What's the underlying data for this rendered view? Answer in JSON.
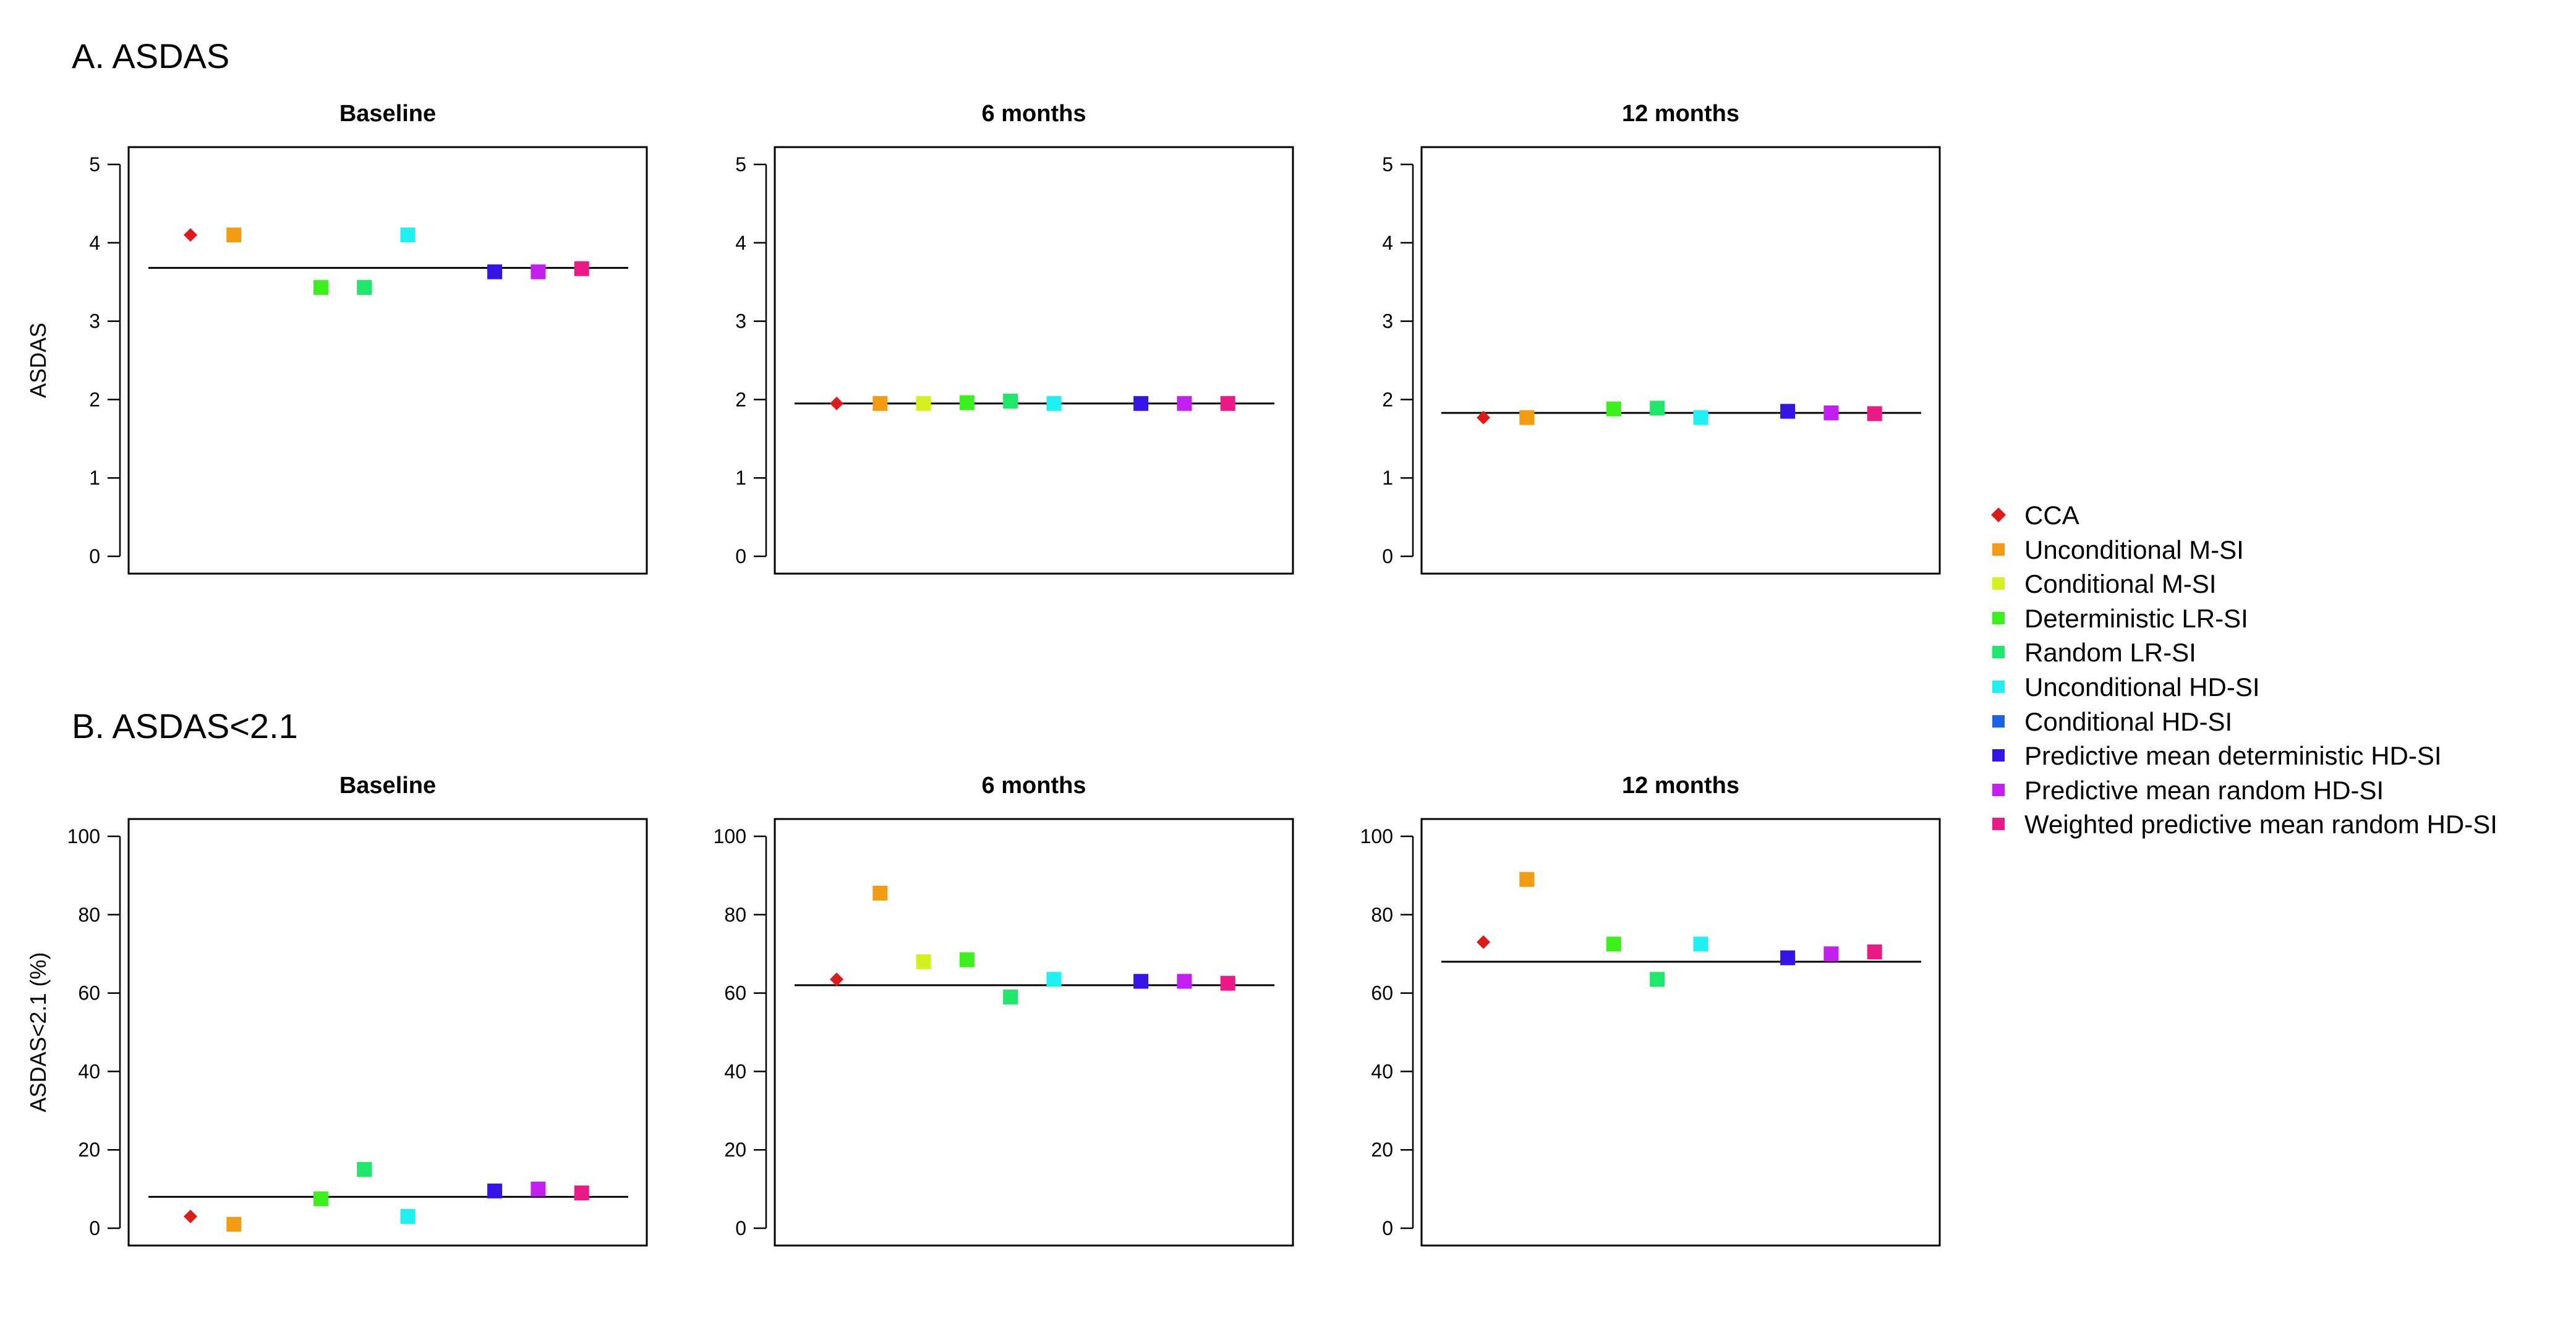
{
  "sections": [
    {
      "title": "A. ASDAS"
    },
    {
      "title": "B. ASDAS<2.1"
    }
  ],
  "legend": [
    {
      "name": "CCA",
      "color": "#dd1b1b",
      "shape": "diamond"
    },
    {
      "name": "Unconditional M-SI",
      "color": "#f39c12",
      "shape": "square"
    },
    {
      "name": "Conditional M-SI",
      "color": "#d4f01f",
      "shape": "square"
    },
    {
      "name": "Deterministic LR-SI",
      "color": "#3cf01e",
      "shape": "square"
    },
    {
      "name": "Random LR-SI",
      "color": "#1de86c",
      "shape": "square"
    },
    {
      "name": "Unconditional HD-SI",
      "color": "#1ff0f0",
      "shape": "square"
    },
    {
      "name": "Conditional HD-SI",
      "color": "#1c62e8",
      "shape": "square"
    },
    {
      "name": "Predictive mean deterministic HD-SI",
      "color": "#3514e6",
      "shape": "square"
    },
    {
      "name": "Predictive mean random HD-SI",
      "color": "#c21ff0",
      "shape": "square"
    },
    {
      "name": "Weighted predictive mean random HD-SI",
      "color": "#ec1a86",
      "shape": "square"
    }
  ],
  "chart_data": [
    {
      "type": "scatter",
      "title": "Baseline",
      "ylabel": "ASDAS",
      "ylim": [
        0,
        5
      ],
      "yticks": [
        "0",
        "1",
        "2",
        "3",
        "4",
        "5"
      ],
      "reference": 3.68,
      "points": [
        {
          "method": "CCA",
          "x": 1,
          "y": 4.1
        },
        {
          "method": "Unconditional M-SI",
          "x": 2,
          "y": 4.1
        },
        {
          "method": "Deterministic LR-SI",
          "x": 4,
          "y": 3.43
        },
        {
          "method": "Random LR-SI",
          "x": 5,
          "y": 3.43
        },
        {
          "method": "Unconditional HD-SI",
          "x": 6,
          "y": 4.1
        },
        {
          "method": "Predictive mean deterministic HD-SI",
          "x": 8,
          "y": 3.63
        },
        {
          "method": "Predictive mean random HD-SI",
          "x": 9,
          "y": 3.63
        },
        {
          "method": "Weighted predictive mean random HD-SI",
          "x": 10,
          "y": 3.67
        }
      ]
    },
    {
      "type": "scatter",
      "title": "6 months",
      "ylabel": "",
      "ylim": [
        0,
        5
      ],
      "yticks": [
        "0",
        "1",
        "2",
        "3",
        "4",
        "5"
      ],
      "reference": 1.95,
      "points": [
        {
          "method": "CCA",
          "x": 1,
          "y": 1.95
        },
        {
          "method": "Unconditional M-SI",
          "x": 2,
          "y": 1.95
        },
        {
          "method": "Conditional M-SI",
          "x": 3,
          "y": 1.95
        },
        {
          "method": "Deterministic LR-SI",
          "x": 4,
          "y": 1.96
        },
        {
          "method": "Random LR-SI",
          "x": 5,
          "y": 1.98
        },
        {
          "method": "Unconditional HD-SI",
          "x": 6,
          "y": 1.95
        },
        {
          "method": "Predictive mean deterministic HD-SI",
          "x": 8,
          "y": 1.95
        },
        {
          "method": "Predictive mean random HD-SI",
          "x": 9,
          "y": 1.95
        },
        {
          "method": "Weighted predictive mean random HD-SI",
          "x": 10,
          "y": 1.95
        }
      ]
    },
    {
      "type": "scatter",
      "title": "12 months",
      "ylabel": "",
      "ylim": [
        0,
        5
      ],
      "yticks": [
        "0",
        "1",
        "2",
        "3",
        "4",
        "5"
      ],
      "reference": 1.83,
      "points": [
        {
          "method": "CCA",
          "x": 1,
          "y": 1.77
        },
        {
          "method": "Unconditional M-SI",
          "x": 2,
          "y": 1.77
        },
        {
          "method": "Deterministic LR-SI",
          "x": 4,
          "y": 1.88
        },
        {
          "method": "Random LR-SI",
          "x": 5,
          "y": 1.89
        },
        {
          "method": "Unconditional HD-SI",
          "x": 6,
          "y": 1.77
        },
        {
          "method": "Predictive mean deterministic HD-SI",
          "x": 8,
          "y": 1.85
        },
        {
          "method": "Predictive mean random HD-SI",
          "x": 9,
          "y": 1.83
        },
        {
          "method": "Weighted predictive mean random HD-SI",
          "x": 10,
          "y": 1.82
        }
      ]
    },
    {
      "type": "scatter",
      "title": "Baseline",
      "ylabel": "ASDAS<2.1 (%)",
      "ylim": [
        0,
        100
      ],
      "yticks": [
        "0",
        "20",
        "40",
        "60",
        "80",
        "100"
      ],
      "reference": 8,
      "points": [
        {
          "method": "CCA",
          "x": 1,
          "y": 3
        },
        {
          "method": "Unconditional M-SI",
          "x": 2,
          "y": 1
        },
        {
          "method": "Deterministic LR-SI",
          "x": 4,
          "y": 7.5
        },
        {
          "method": "Random LR-SI",
          "x": 5,
          "y": 15
        },
        {
          "method": "Unconditional HD-SI",
          "x": 6,
          "y": 3
        },
        {
          "method": "Predictive mean deterministic HD-SI",
          "x": 8,
          "y": 9.5
        },
        {
          "method": "Predictive mean random HD-SI",
          "x": 9,
          "y": 10
        },
        {
          "method": "Weighted predictive mean random HD-SI",
          "x": 10,
          "y": 9
        }
      ]
    },
    {
      "type": "scatter",
      "title": "6 months",
      "ylabel": "",
      "ylim": [
        0,
        100
      ],
      "yticks": [
        "0",
        "20",
        "40",
        "60",
        "80",
        "100"
      ],
      "reference": 62,
      "points": [
        {
          "method": "CCA",
          "x": 1,
          "y": 63.5
        },
        {
          "method": "Unconditional M-SI",
          "x": 2,
          "y": 85.5
        },
        {
          "method": "Conditional M-SI",
          "x": 3,
          "y": 68
        },
        {
          "method": "Deterministic LR-SI",
          "x": 4,
          "y": 68.5
        },
        {
          "method": "Random LR-SI",
          "x": 5,
          "y": 59
        },
        {
          "method": "Unconditional HD-SI",
          "x": 6,
          "y": 63.5
        },
        {
          "method": "Predictive mean deterministic HD-SI",
          "x": 8,
          "y": 63
        },
        {
          "method": "Predictive mean random HD-SI",
          "x": 9,
          "y": 63
        },
        {
          "method": "Weighted predictive mean random HD-SI",
          "x": 10,
          "y": 62.5
        }
      ]
    },
    {
      "type": "scatter",
      "title": "12 months",
      "ylabel": "",
      "ylim": [
        0,
        100
      ],
      "yticks": [
        "0",
        "20",
        "40",
        "60",
        "80",
        "100"
      ],
      "reference": 68,
      "points": [
        {
          "method": "CCA",
          "x": 1,
          "y": 73
        },
        {
          "method": "Unconditional M-SI",
          "x": 2,
          "y": 89
        },
        {
          "method": "Deterministic LR-SI",
          "x": 4,
          "y": 72.5
        },
        {
          "method": "Random LR-SI",
          "x": 5,
          "y": 63.5
        },
        {
          "method": "Unconditional HD-SI",
          "x": 6,
          "y": 72.5
        },
        {
          "method": "Predictive mean deterministic HD-SI",
          "x": 8,
          "y": 69
        },
        {
          "method": "Predictive mean random HD-SI",
          "x": 9,
          "y": 70
        },
        {
          "method": "Weighted predictive mean random HD-SI",
          "x": 10,
          "y": 70.5
        }
      ]
    }
  ]
}
